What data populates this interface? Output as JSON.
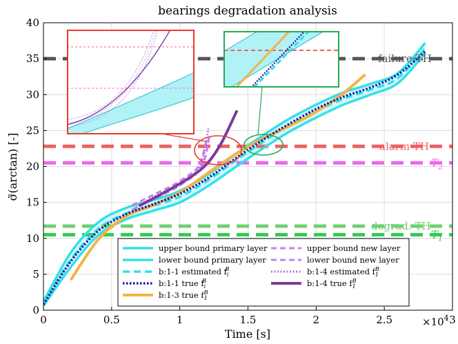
{
  "chart_data": {
    "type": "line",
    "title": "bearings degradation analysis",
    "xlabel": "Time [s]",
    "ylabel": "σ̃(arctan) [-]",
    "x_multiplier": "×10",
    "x_multiplier_exp": "4",
    "xlim": [
      0,
      30000
    ],
    "ylim": [
      0,
      40
    ],
    "xticks": [
      0,
      5000,
      10000,
      15000,
      20000,
      25000,
      30000
    ],
    "xtick_labels": [
      "0",
      "0.5",
      "1",
      "1.5",
      "2",
      "2.5",
      "3"
    ],
    "yticks": [
      0,
      5,
      10,
      15,
      20,
      25,
      30,
      35,
      40
    ],
    "ytick_labels": [
      "0",
      "5",
      "10",
      "15",
      "20",
      "25",
      "30",
      "35",
      "40"
    ],
    "grid": true,
    "legend_position": "bottom-center",
    "thresholds": [
      {
        "label": "failure TH",
        "y": 35.0,
        "color": "#555555"
      },
      {
        "label": "alarm TH",
        "y": 22.8,
        "color": "#f06060"
      },
      {
        "label": "T",
        "label_sub": "2",
        "y": 20.5,
        "color": "#ee66ee"
      },
      {
        "label": "degrad. TH",
        "y": 11.7,
        "color": "#6fd16f"
      },
      {
        "label": "T",
        "label_sub": "1",
        "y": 10.5,
        "color": "#33cc55"
      }
    ],
    "series": [
      {
        "name": "upper bound primary layer",
        "color": "#33e0e8",
        "x": [
          0,
          2000,
          4000,
          6000,
          8000,
          10000,
          12000,
          14000,
          16000,
          18000,
          20000,
          22000,
          24000,
          26000,
          28000
        ],
        "y": [
          1.2,
          8.0,
          12.2,
          14.2,
          15.3,
          16.6,
          18.8,
          21.6,
          24.2,
          26.6,
          28.6,
          30.3,
          31.5,
          33.0,
          37.2
        ]
      },
      {
        "name": "lower bound primary layer",
        "color": "#33e0e8",
        "x": [
          0,
          2000,
          4000,
          6000,
          8000,
          10000,
          12000,
          14000,
          16000,
          18000,
          20000,
          22000,
          24000,
          26000,
          28000
        ],
        "y": [
          0.6,
          6.0,
          10.4,
          12.6,
          13.8,
          15.0,
          17.2,
          19.8,
          22.4,
          24.8,
          26.8,
          28.6,
          30.0,
          31.6,
          35.8
        ]
      },
      {
        "name": "b:1-1 estimated f",
        "name_sup": "B",
        "name_sub": "i",
        "color": "#33e0e8",
        "x": [
          0,
          2000,
          4000,
          6000,
          8000,
          10000,
          12000,
          14000,
          16000,
          18000,
          20000,
          22000,
          24000,
          26000,
          28000
        ],
        "y": [
          0.9,
          7.0,
          11.3,
          13.4,
          14.5,
          15.8,
          18.0,
          20.7,
          23.3,
          25.7,
          27.7,
          29.4,
          30.7,
          32.3,
          36.5
        ]
      },
      {
        "name": "b:1-1 true f",
        "name_sup": "B",
        "name_sub": "i",
        "color": "#1a1aa8",
        "x": [
          0,
          2000,
          4000,
          6000,
          8000,
          10000,
          12000,
          14000,
          16000,
          18000,
          20000,
          22000,
          24000,
          26000,
          28000
        ],
        "y": [
          0.8,
          6.8,
          11.0,
          13.3,
          14.7,
          16.2,
          18.3,
          21.0,
          23.6,
          25.9,
          28.0,
          29.7,
          31.0,
          32.8,
          36.0
        ]
      },
      {
        "name": "b:1-3 true f",
        "name_sup": "B",
        "name_sub": "1",
        "color": "#f5b342",
        "x": [
          2000,
          4000,
          6000,
          8000,
          10000,
          12000,
          14000,
          16000,
          18000,
          20000,
          22000,
          23600
        ],
        "y": [
          4.2,
          9.8,
          13.0,
          14.6,
          16.4,
          19.0,
          21.6,
          23.8,
          25.6,
          27.6,
          30.2,
          32.8
        ]
      },
      {
        "name": "upper bound new layer",
        "color": "#c77ff0",
        "x": [
          6500,
          8000,
          9500,
          10500,
          11200,
          11600,
          12000
        ],
        "y": [
          14.6,
          16.0,
          17.4,
          18.6,
          19.6,
          21.0,
          24.0
        ]
      },
      {
        "name": "lower bound new layer",
        "color": "#c77ff0",
        "x": [
          6500,
          8000,
          9500,
          10500,
          11200,
          11800,
          12200
        ],
        "y": [
          14.0,
          15.4,
          16.8,
          18.0,
          19.0,
          20.8,
          24.5
        ]
      },
      {
        "name": "b:1-4 estimated f",
        "name_sup": "B",
        "name_sub": "1",
        "color": "#b070d8",
        "x": [
          6800,
          8000,
          9500,
          10500,
          11200,
          11700,
          12100
        ],
        "y": [
          14.3,
          15.7,
          17.1,
          18.3,
          19.3,
          21.0,
          25.3
        ]
      },
      {
        "name": "b:1-4 true f",
        "name_sup": "B",
        "name_sub": "1",
        "color": "#7f3a9a",
        "x": [
          7000,
          8500,
          10000,
          11000,
          11800,
          12500,
          13200,
          14200
        ],
        "y": [
          14.5,
          16.0,
          17.6,
          18.8,
          20.0,
          21.6,
          23.8,
          27.8
        ]
      }
    ]
  }
}
